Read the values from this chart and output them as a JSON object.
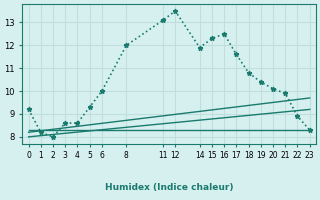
{
  "xlabel": "Humidex (Indice chaleur)",
  "bg_color": "#d6f0ef",
  "line_color": "#1a7a6e",
  "grid_color": "#c0dedd",
  "series": [
    {
      "x": [
        0,
        1,
        2,
        3,
        4,
        5,
        6,
        8,
        11,
        12,
        14,
        15,
        16,
        17,
        18,
        19,
        20,
        21,
        22,
        23
      ],
      "y": [
        9.2,
        8.2,
        8.0,
        8.6,
        8.6,
        9.3,
        10.0,
        12.0,
        13.1,
        13.5,
        11.9,
        12.3,
        12.5,
        11.6,
        10.8,
        10.4,
        10.1,
        9.9,
        8.9,
        8.3
      ],
      "marker": "*",
      "linestyle": "dotted",
      "linewidth": 1.2
    },
    {
      "x": [
        0,
        23
      ],
      "y": [
        8.2,
        9.7
      ],
      "marker": null,
      "linestyle": "solid",
      "linewidth": 1.0
    },
    {
      "x": [
        0,
        23
      ],
      "y": [
        8.0,
        9.2
      ],
      "marker": null,
      "linestyle": "solid",
      "linewidth": 1.0
    },
    {
      "x": [
        0,
        23
      ],
      "y": [
        8.3,
        8.3
      ],
      "marker": null,
      "linestyle": "solid",
      "linewidth": 1.0
    }
  ],
  "xlim": [
    -0.5,
    23.5
  ],
  "ylim": [
    7.7,
    13.8
  ],
  "yticks": [
    8,
    9,
    10,
    11,
    12,
    13
  ],
  "xticks": [
    0,
    1,
    2,
    3,
    4,
    5,
    6,
    8,
    11,
    12,
    14,
    15,
    16,
    17,
    18,
    19,
    20,
    21,
    22,
    23
  ],
  "xtick_labels": [
    "0",
    "1",
    "2",
    "3",
    "4",
    "5",
    "6",
    "8",
    "11",
    "12",
    "14",
    "15",
    "16",
    "17",
    "18",
    "19",
    "20",
    "21",
    "22",
    "23"
  ]
}
